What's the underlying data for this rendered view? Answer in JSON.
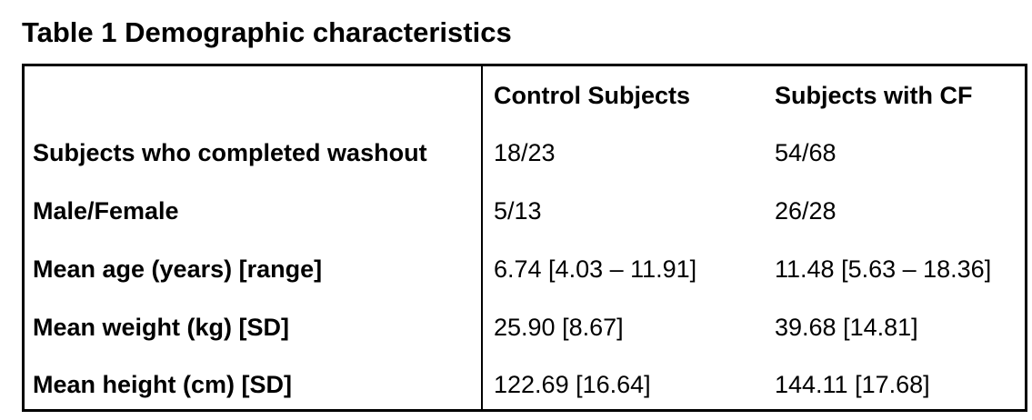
{
  "title": "Table 1 Demographic characteristics",
  "columns": [
    "",
    "Control Subjects",
    "Subjects with CF"
  ],
  "rows": [
    {
      "label": "Subjects who completed washout",
      "control": "18/23",
      "cf": "54/68"
    },
    {
      "label": "Male/Female",
      "control": "5/13",
      "cf": "26/28"
    },
    {
      "label": "Mean age (years) [range]",
      "control": "6.74 [4.03 – 11.91]",
      "cf": "11.48 [5.63 – 18.36]"
    },
    {
      "label": "Mean weight (kg) [SD]",
      "control": "25.90 [8.67]",
      "cf": "39.68 [14.81]"
    },
    {
      "label": "Mean height (cm) [SD]",
      "control": "122.69 [16.64]",
      "cf": "144.11 [17.68]"
    }
  ]
}
